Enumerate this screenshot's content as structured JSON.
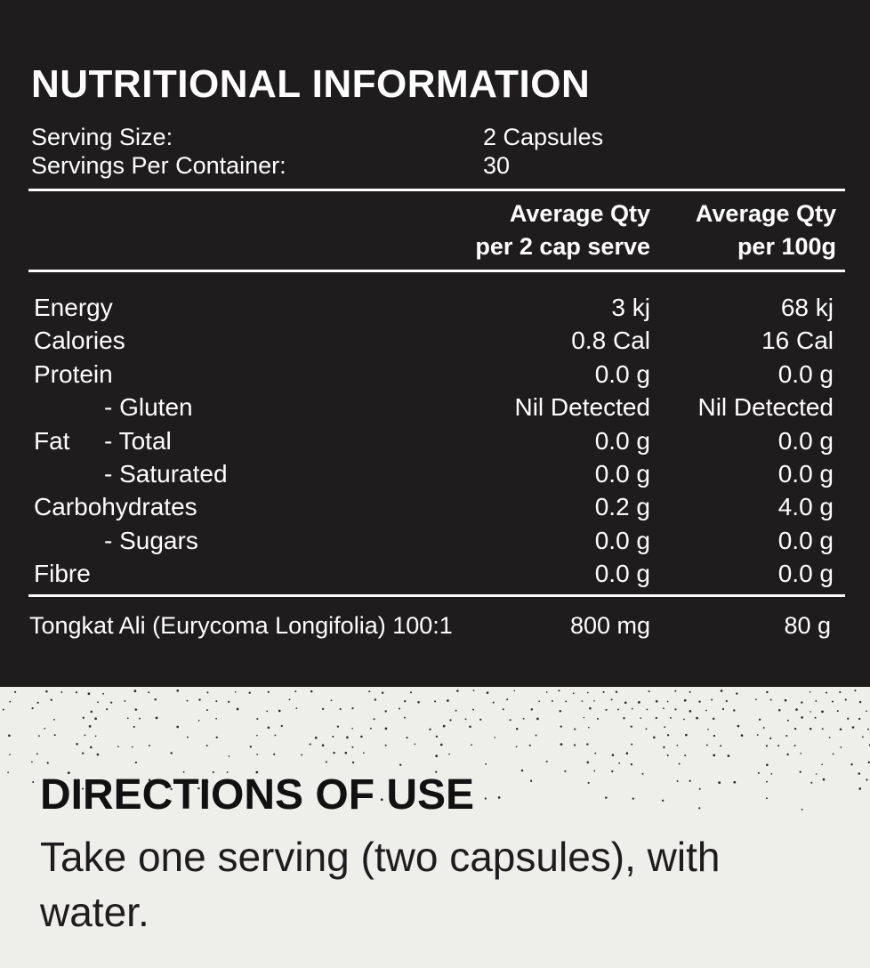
{
  "nutrition": {
    "title": "NUTRITIONAL INFORMATION",
    "serving_size_label": "Serving Size:",
    "serving_size_value": "2 Capsules",
    "servings_per_container_label": "Servings Per Container:",
    "servings_per_container_value": "30",
    "col1_header_line1": "Average Qty",
    "col1_header_line2": "per 2 cap serve",
    "col2_header_line1": "Average Qty",
    "col2_header_line2": "per 100g",
    "rows": [
      {
        "prefix": "",
        "label": "Energy",
        "indent": false,
        "per_serve": "3 kj",
        "per_100g": "68 kj"
      },
      {
        "prefix": "",
        "label": "Calories",
        "indent": false,
        "per_serve": "0.8 Cal",
        "per_100g": "16 Cal"
      },
      {
        "prefix": "",
        "label": "Protein",
        "indent": false,
        "per_serve": "0.0 g",
        "per_100g": "0.0 g"
      },
      {
        "prefix": "",
        "label": "- Gluten",
        "indent": true,
        "per_serve": "Nil Detected",
        "per_100g": "Nil Detected"
      },
      {
        "prefix": "Fat",
        "label": "- Total",
        "indent": true,
        "per_serve": "0.0 g",
        "per_100g": "0.0 g"
      },
      {
        "prefix": "",
        "label": "- Saturated",
        "indent": true,
        "per_serve": "0.0 g",
        "per_100g": "0.0 g"
      },
      {
        "prefix": "",
        "label": "Carbohydrates",
        "indent": false,
        "per_serve": "0.2 g",
        "per_100g": "4.0 g"
      },
      {
        "prefix": "",
        "label": "- Sugars",
        "indent": true,
        "per_serve": "0.0 g",
        "per_100g": "0.0 g"
      },
      {
        "prefix": "",
        "label": "Fibre",
        "indent": false,
        "per_serve": "0.0 g",
        "per_100g": "0.0 g"
      }
    ],
    "active_ingredient": {
      "label": "Tongkat Ali (Eurycoma Longifolia) 100:1",
      "per_serve": "800 mg",
      "per_100g": "80 g"
    }
  },
  "directions": {
    "title": "DIRECTIONS OF USE",
    "text": "Take one serving (two capsules), with water."
  },
  "colors": {
    "panel_background": "#1e1c1c",
    "page_background": "#eeeeea",
    "panel_text": "#ffffff",
    "body_text": "#1e1c1c"
  }
}
